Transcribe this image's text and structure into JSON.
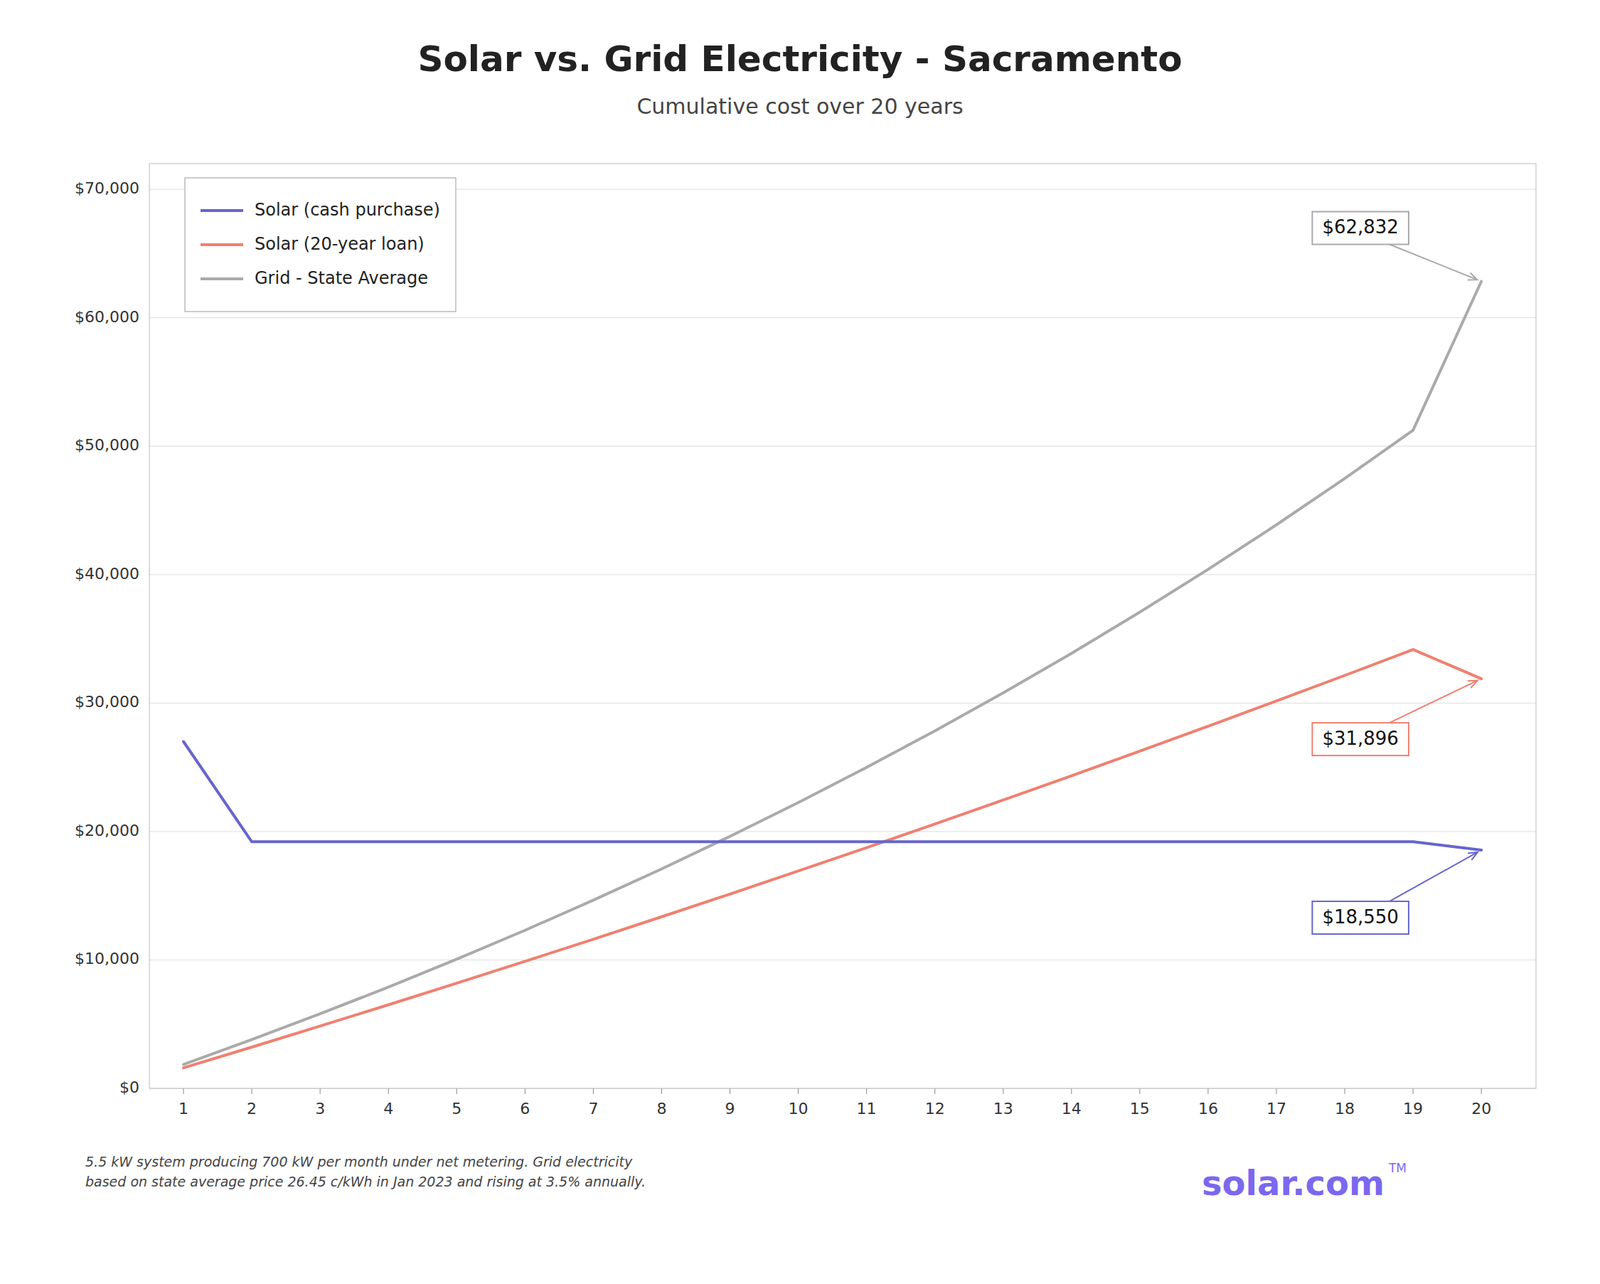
{
  "chart_data": {
    "type": "line",
    "title": "Solar vs. Grid Electricity - Sacramento",
    "subtitle": "Cumulative cost over 20 years",
    "x": [
      1,
      2,
      3,
      4,
      5,
      6,
      7,
      8,
      9,
      10,
      11,
      12,
      13,
      14,
      15,
      16,
      17,
      18,
      19,
      20
    ],
    "series": [
      {
        "name": "Solar (cash purchase)",
        "color": "#6666CC",
        "values": [
          27000,
          19200,
          19200,
          19200,
          19200,
          19200,
          19200,
          19200,
          19200,
          19200,
          19200,
          19200,
          19200,
          19200,
          19200,
          19200,
          19200,
          19200,
          19200,
          18550
        ]
      },
      {
        "name": "Solar (20-year loan)",
        "color": "#F08070",
        "values": [
          1596,
          3213,
          4851,
          6509,
          8189,
          9891,
          11615,
          13362,
          15132,
          16926,
          18743,
          20584,
          22449,
          24339,
          26254,
          28194,
          30160,
          32151,
          34169,
          31896
        ]
      },
      {
        "name": "Grid - State Average",
        "color": "#AAAAAA",
        "values": [
          1862,
          3795,
          5803,
          7889,
          10057,
          12310,
          14652,
          17087,
          19619,
          22251,
          24988,
          27834,
          30794,
          33873,
          37076,
          40409,
          43877,
          47486,
          51242,
          62832
        ]
      }
    ],
    "xlim": [
      0.5,
      20.8
    ],
    "xticks": [
      1,
      2,
      3,
      4,
      5,
      6,
      7,
      8,
      9,
      10,
      11,
      12,
      13,
      14,
      15,
      16,
      17,
      18,
      19,
      20
    ],
    "ylim": [
      0,
      72000
    ],
    "yticks": [
      {
        "value": 0,
        "label": "$0"
      },
      {
        "value": 10000,
        "label": "$10,000"
      },
      {
        "value": 20000,
        "label": "$20,000"
      },
      {
        "value": 30000,
        "label": "$30,000"
      },
      {
        "value": 40000,
        "label": "$40,000"
      },
      {
        "value": 50000,
        "label": "$50,000"
      },
      {
        "value": 60000,
        "label": "$60,000"
      },
      {
        "value": 70000,
        "label": "$70,000"
      }
    ],
    "grid": true,
    "legend": "upper left",
    "annotations": [
      {
        "text": "$62,832",
        "x": 20,
        "y": 62832
      },
      {
        "text": "$31,896",
        "x": 20,
        "y": 31896
      },
      {
        "text": "$18,550",
        "x": 20,
        "y": 18550
      }
    ],
    "footnote": "5.5 kW system producing 700 kW per month under net metering. Grid electricity\nbased on state average price 26.45 c/kWh in Jan 2023 and rising at 3.5% annually.",
    "logo": "solar.com",
    "logo_mark": "TM"
  }
}
